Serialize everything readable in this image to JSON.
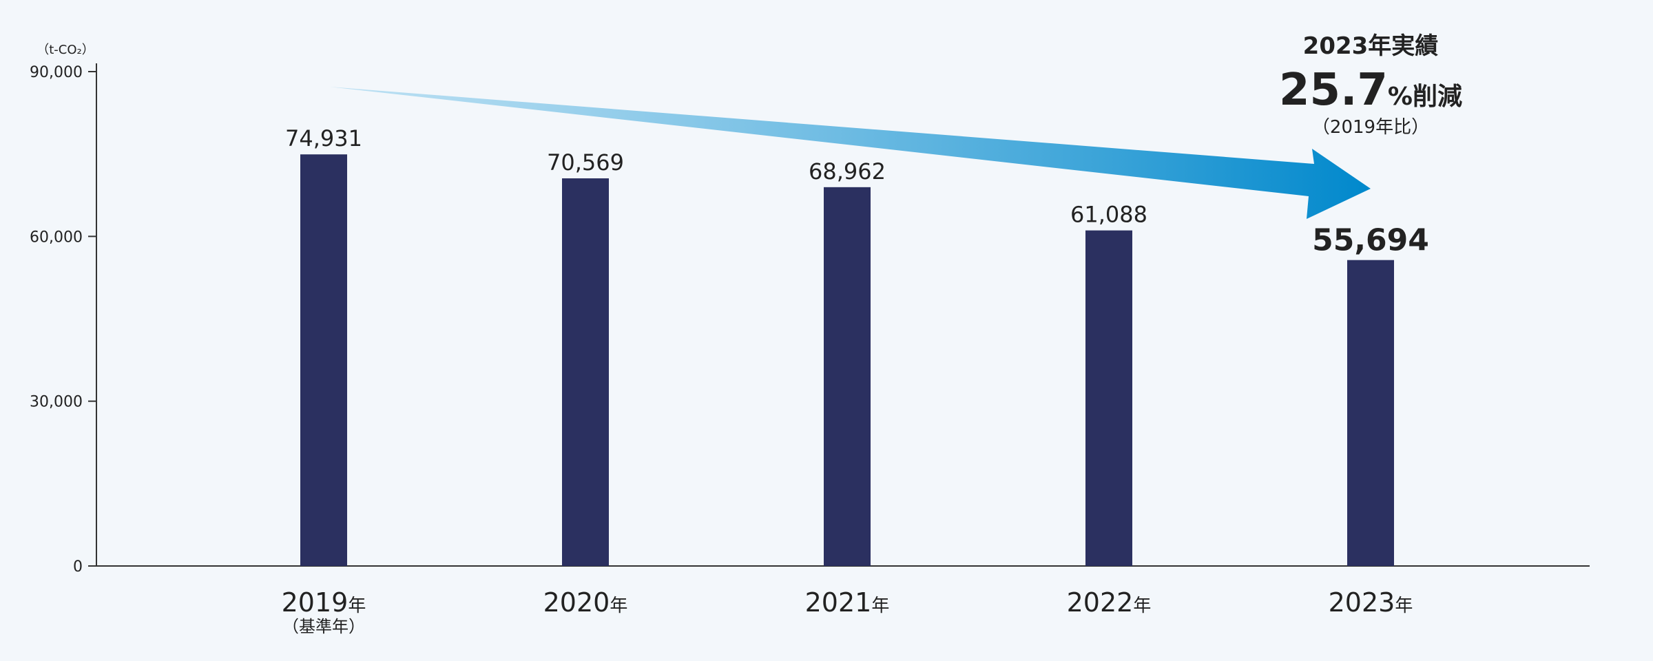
{
  "chart_data": {
    "type": "bar",
    "unit": "（t-CO₂）",
    "categories": [
      "2019",
      "2020",
      "2021",
      "2022",
      "2023"
    ],
    "category_suffix": "年",
    "category_sublabels": [
      "（基準年）",
      "",
      "",
      "",
      ""
    ],
    "values": [
      74931,
      70569,
      68962,
      61088,
      55694
    ],
    "value_labels": [
      "74,931",
      "70,569",
      "68,962",
      "61,088",
      "55,694"
    ],
    "highlight_index": 4,
    "ylim": [
      0,
      90000
    ],
    "yticks": [
      0,
      30000,
      60000,
      90000
    ],
    "ytick_labels": [
      "0",
      "30,000",
      "60,000",
      "90,000"
    ],
    "grid": false,
    "annotation": {
      "title": "2023年実績",
      "value": "25.7",
      "unit": "%削減",
      "note": "（2019年比）"
    },
    "colors": {
      "bar": "#2b3060",
      "axis": "#333333",
      "arrow_start": "#a8d8f0",
      "arrow_end": "#0088cc"
    }
  }
}
